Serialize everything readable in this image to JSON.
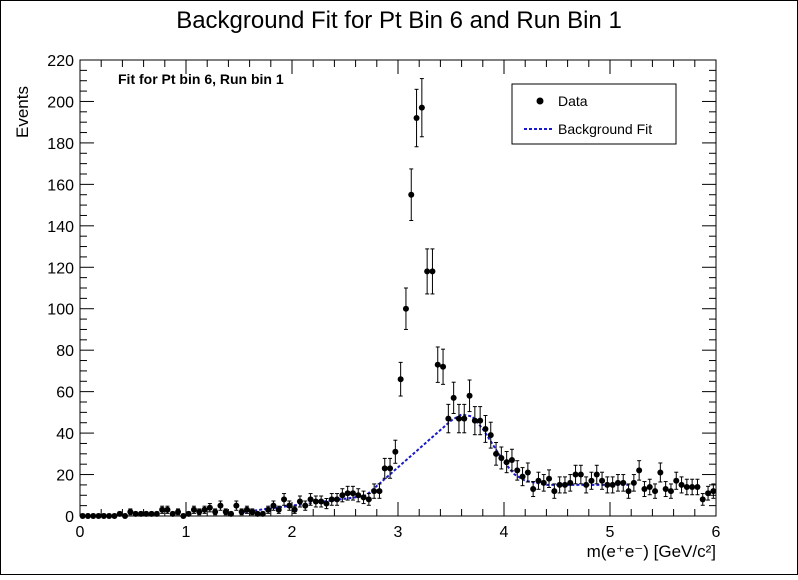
{
  "chart_data": {
    "type": "scatter",
    "title": "Background Fit for Pt Bin 6 and Run Bin 1",
    "annotation": "Fit for Pt bin 6, Run bin 1",
    "xlabel": "m(e⁺e⁻) [GeV/c²]",
    "ylabel": "Events",
    "xlim": [
      0,
      6
    ],
    "ylim": [
      0,
      220
    ],
    "xticks": [
      0,
      1,
      2,
      3,
      4,
      5,
      6
    ],
    "yticks": [
      0,
      20,
      40,
      60,
      80,
      100,
      120,
      140,
      160,
      180,
      200,
      220
    ],
    "legend": {
      "position": "top-right",
      "entries": [
        {
          "label": "Data",
          "kind": "marker"
        },
        {
          "label": "Background Fit",
          "kind": "dashed-line"
        }
      ]
    },
    "series": [
      {
        "name": "Data",
        "kind": "points-with-errors",
        "color": "#000000",
        "points": [
          [
            0.025,
            0
          ],
          [
            0.075,
            0
          ],
          [
            0.125,
            0
          ],
          [
            0.175,
            0
          ],
          [
            0.225,
            0
          ],
          [
            0.275,
            0
          ],
          [
            0.325,
            0
          ],
          [
            0.375,
            1
          ],
          [
            0.425,
            0
          ],
          [
            0.475,
            2
          ],
          [
            0.525,
            1
          ],
          [
            0.575,
            1
          ],
          [
            0.625,
            1
          ],
          [
            0.675,
            1
          ],
          [
            0.725,
            1
          ],
          [
            0.775,
            3
          ],
          [
            0.825,
            3
          ],
          [
            0.875,
            1
          ],
          [
            0.925,
            2
          ],
          [
            0.975,
            0
          ],
          [
            1.025,
            1
          ],
          [
            1.075,
            3
          ],
          [
            1.125,
            2
          ],
          [
            1.175,
            3
          ],
          [
            1.225,
            4
          ],
          [
            1.275,
            2
          ],
          [
            1.325,
            5
          ],
          [
            1.375,
            2
          ],
          [
            1.425,
            1
          ],
          [
            1.475,
            5
          ],
          [
            1.525,
            2
          ],
          [
            1.575,
            3
          ],
          [
            1.625,
            2
          ],
          [
            1.675,
            1
          ],
          [
            1.725,
            1
          ],
          [
            1.775,
            3
          ],
          [
            1.825,
            5
          ],
          [
            1.875,
            3
          ],
          [
            1.925,
            8
          ],
          [
            1.975,
            5
          ],
          [
            2.025,
            3
          ],
          [
            2.075,
            7
          ],
          [
            2.125,
            5
          ],
          [
            2.175,
            8
          ],
          [
            2.225,
            7
          ],
          [
            2.275,
            7
          ],
          [
            2.325,
            6
          ],
          [
            2.375,
            8
          ],
          [
            2.425,
            8
          ],
          [
            2.475,
            10
          ],
          [
            2.525,
            11
          ],
          [
            2.575,
            11
          ],
          [
            2.625,
            10
          ],
          [
            2.675,
            9
          ],
          [
            2.725,
            8
          ],
          [
            2.775,
            12
          ],
          [
            2.825,
            12
          ],
          [
            2.875,
            23
          ],
          [
            2.925,
            23
          ],
          [
            2.975,
            31
          ],
          [
            3.025,
            66
          ],
          [
            3.075,
            100
          ],
          [
            3.125,
            155
          ],
          [
            3.175,
            192
          ],
          [
            3.225,
            197
          ],
          [
            3.275,
            118
          ],
          [
            3.325,
            118
          ],
          [
            3.375,
            73
          ],
          [
            3.425,
            72
          ],
          [
            3.475,
            47
          ],
          [
            3.525,
            57
          ],
          [
            3.575,
            47
          ],
          [
            3.625,
            47
          ],
          [
            3.675,
            58
          ],
          [
            3.725,
            46
          ],
          [
            3.775,
            46
          ],
          [
            3.825,
            42
          ],
          [
            3.875,
            39
          ],
          [
            3.925,
            30
          ],
          [
            3.975,
            28
          ],
          [
            4.025,
            26
          ],
          [
            4.075,
            27
          ],
          [
            4.125,
            22
          ],
          [
            4.175,
            19
          ],
          [
            4.225,
            21
          ],
          [
            4.275,
            13
          ],
          [
            4.325,
            17
          ],
          [
            4.375,
            16
          ],
          [
            4.425,
            18
          ],
          [
            4.475,
            12
          ],
          [
            4.525,
            15
          ],
          [
            4.575,
            15
          ],
          [
            4.625,
            16
          ],
          [
            4.675,
            20
          ],
          [
            4.725,
            20
          ],
          [
            4.775,
            15
          ],
          [
            4.825,
            17
          ],
          [
            4.875,
            20
          ],
          [
            4.925,
            17
          ],
          [
            4.975,
            15
          ],
          [
            5.025,
            15
          ],
          [
            5.075,
            16
          ],
          [
            5.125,
            16
          ],
          [
            5.175,
            12
          ],
          [
            5.225,
            16
          ],
          [
            5.275,
            22
          ],
          [
            5.325,
            13
          ],
          [
            5.375,
            14
          ],
          [
            5.425,
            12
          ],
          [
            5.475,
            21
          ],
          [
            5.525,
            13
          ],
          [
            5.575,
            12
          ],
          [
            5.625,
            17
          ],
          [
            5.675,
            15
          ],
          [
            5.725,
            14
          ],
          [
            5.775,
            14
          ],
          [
            5.825,
            14
          ],
          [
            5.875,
            8
          ],
          [
            5.925,
            11
          ],
          [
            5.975,
            12
          ]
        ]
      },
      {
        "name": "Background Fit",
        "kind": "dashed-line",
        "color": "#1a1acc",
        "points": [
          [
            1.55,
            2
          ],
          [
            1.7,
            3
          ],
          [
            1.85,
            4
          ],
          [
            2.0,
            5
          ],
          [
            2.15,
            6
          ],
          [
            2.3,
            7
          ],
          [
            2.45,
            8
          ],
          [
            2.6,
            9
          ],
          [
            2.7,
            10
          ],
          [
            3.5,
            46
          ],
          [
            3.6,
            49
          ],
          [
            3.7,
            48
          ],
          [
            3.8,
            42
          ],
          [
            3.9,
            34
          ],
          [
            4.0,
            26
          ],
          [
            4.1,
            20
          ],
          [
            4.2,
            17
          ],
          [
            4.3,
            16
          ],
          [
            4.4,
            15
          ],
          [
            4.6,
            15
          ],
          [
            4.8,
            15
          ],
          [
            5.0,
            15
          ],
          [
            5.2,
            15
          ]
        ]
      }
    ]
  }
}
